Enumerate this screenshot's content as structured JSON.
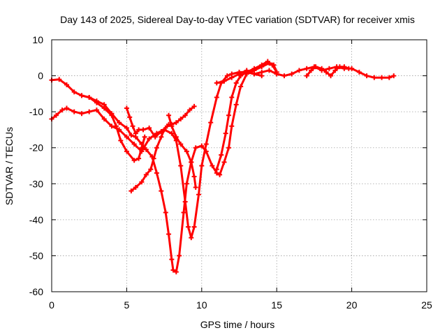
{
  "chart_data": {
    "type": "scatter",
    "title": "Day 143 of 2025, Sidereal Day-to-day VTEC variation (SDTVAR) for receiver xmis",
    "xlabel": "GPS time / hours",
    "ylabel": "SDTVAR / TECUs",
    "xlim": [
      0,
      25
    ],
    "ylim": [
      -60,
      10
    ],
    "xticks": [
      0,
      5,
      10,
      15,
      20,
      25
    ],
    "yticks": [
      10,
      0,
      -10,
      -20,
      -30,
      -40,
      -50,
      -60
    ],
    "xtick_labels": [
      "0",
      "5",
      "10",
      "15",
      "20",
      "25"
    ],
    "ytick_labels": [
      "10",
      "0",
      "-10",
      "-20",
      "-30",
      "-40",
      "-50",
      "-60"
    ],
    "grid": true,
    "marker": "+",
    "color": "#ff0000",
    "series": [
      {
        "name": "satellite track 1",
        "points": [
          [
            0.0,
            -1.2
          ],
          [
            0.5,
            -1.0
          ],
          [
            1.0,
            -2.5
          ],
          [
            1.5,
            -4.5
          ],
          [
            2.0,
            -5.5
          ],
          [
            2.5,
            -6.0
          ],
          [
            3.0,
            -7.0
          ],
          [
            3.5,
            -8.0
          ],
          [
            4.0,
            -10.5
          ],
          [
            4.5,
            -13.0
          ],
          [
            5.0,
            -14.5
          ],
          [
            5.3,
            -16.5
          ],
          [
            5.6,
            -17.0
          ],
          [
            6.0,
            -19.0
          ],
          [
            6.3,
            -20.5
          ],
          [
            6.7,
            -22.5
          ],
          [
            7.0,
            -27.0
          ],
          [
            7.3,
            -32.0
          ],
          [
            7.6,
            -38.0
          ],
          [
            7.8,
            -44.0
          ],
          [
            8.0,
            -51.0
          ],
          [
            8.1,
            -54.0
          ],
          [
            8.3,
            -54.5
          ],
          [
            8.5,
            -50.0
          ],
          [
            8.8,
            -38.0
          ],
          [
            9.0,
            -30.0
          ],
          [
            9.3,
            -24.0
          ],
          [
            9.6,
            -20.0
          ],
          [
            10.0,
            -19.5
          ],
          [
            10.3,
            -21.0
          ],
          [
            10.7,
            -25.0
          ],
          [
            11.0,
            -27.0
          ],
          [
            11.2,
            -27.5
          ],
          [
            11.5,
            -24.0
          ],
          [
            11.8,
            -20.0
          ],
          [
            12.0,
            -14.0
          ],
          [
            12.3,
            -8.0
          ],
          [
            12.6,
            -3.0
          ],
          [
            13.0,
            0.5
          ],
          [
            13.5,
            1.5
          ],
          [
            14.0,
            2.5
          ],
          [
            14.5,
            3.5
          ],
          [
            14.8,
            3.0
          ],
          [
            15.0,
            1.0
          ]
        ]
      },
      {
        "name": "satellite track 2",
        "points": [
          [
            0.0,
            -12.0
          ],
          [
            0.3,
            -11.0
          ],
          [
            0.7,
            -9.5
          ],
          [
            1.0,
            -9.0
          ],
          [
            1.5,
            -10.0
          ],
          [
            2.0,
            -10.5
          ],
          [
            2.5,
            -10.0
          ],
          [
            3.0,
            -9.5
          ],
          [
            3.5,
            -12.0
          ],
          [
            4.0,
            -14.0
          ],
          [
            4.5,
            -15.0
          ],
          [
            5.0,
            -17.0
          ],
          [
            5.5,
            -19.0
          ],
          [
            6.0,
            -21.0
          ],
          [
            6.5,
            -17.5
          ],
          [
            7.0,
            -16.0
          ],
          [
            7.5,
            -15.0
          ],
          [
            8.0,
            -16.0
          ],
          [
            8.3,
            -18.0
          ],
          [
            8.6,
            -25.0
          ],
          [
            8.9,
            -35.0
          ],
          [
            9.1,
            -42.0
          ],
          [
            9.3,
            -45.0
          ],
          [
            9.5,
            -42.0
          ],
          [
            9.8,
            -33.0
          ],
          [
            10.0,
            -25.0
          ],
          [
            10.3,
            -19.0
          ],
          [
            10.6,
            -13.0
          ],
          [
            11.0,
            -6.0
          ],
          [
            11.3,
            -2.0
          ],
          [
            11.7,
            0.0
          ],
          [
            12.0,
            0.5
          ],
          [
            12.5,
            1.0
          ],
          [
            13.0,
            1.0
          ],
          [
            13.5,
            0.5
          ],
          [
            14.0,
            0.0
          ]
        ]
      },
      {
        "name": "satellite track 3",
        "points": [
          [
            5.0,
            -9.0
          ],
          [
            5.2,
            -11.5
          ],
          [
            5.4,
            -14.0
          ],
          [
            5.6,
            -16.0
          ],
          [
            5.8,
            -15.0
          ],
          [
            6.1,
            -15.0
          ],
          [
            6.5,
            -14.5
          ],
          [
            6.9,
            -17.0
          ],
          [
            7.3,
            -15.5
          ],
          [
            7.7,
            -14.0
          ],
          [
            8.0,
            -13.5
          ],
          [
            8.3,
            -13.0
          ],
          [
            8.6,
            -12.0
          ],
          [
            8.9,
            -11.0
          ],
          [
            9.2,
            -9.5
          ],
          [
            9.5,
            -8.5
          ]
        ]
      },
      {
        "name": "satellite track 4",
        "points": [
          [
            2.0,
            -5.5
          ],
          [
            2.5,
            -6.0
          ],
          [
            3.0,
            -7.5
          ],
          [
            3.5,
            -9.0
          ],
          [
            4.0,
            -11.0
          ],
          [
            4.3,
            -14.0
          ],
          [
            4.6,
            -18.0
          ],
          [
            5.0,
            -21.0
          ],
          [
            5.5,
            -23.5
          ],
          [
            5.8,
            -23.0
          ],
          [
            6.0,
            -20.0
          ],
          [
            6.2,
            -17.0
          ]
        ]
      },
      {
        "name": "satellite track 5",
        "points": [
          [
            7.8,
            -11.0
          ],
          [
            8.0,
            -14.0
          ],
          [
            8.3,
            -17.0
          ],
          [
            8.6,
            -19.0
          ],
          [
            9.0,
            -21.0
          ],
          [
            9.3,
            -24.0
          ],
          [
            9.5,
            -28.0
          ],
          [
            9.6,
            -31.0
          ]
        ]
      },
      {
        "name": "satellite track 6",
        "points": [
          [
            5.3,
            -32.0
          ],
          [
            5.6,
            -31.0
          ],
          [
            6.0,
            -29.5
          ],
          [
            6.3,
            -27.5
          ],
          [
            6.6,
            -26.0
          ],
          [
            6.8,
            -23.0
          ],
          [
            7.0,
            -20.0
          ],
          [
            7.3,
            -17.0
          ],
          [
            7.5,
            -15.0
          ],
          [
            7.8,
            -13.5
          ]
        ]
      },
      {
        "name": "satellite track 7",
        "points": [
          [
            11.0,
            -26.0
          ],
          [
            11.3,
            -22.0
          ],
          [
            11.6,
            -16.0
          ],
          [
            11.8,
            -11.0
          ],
          [
            12.0,
            -6.0
          ],
          [
            12.3,
            -2.0
          ],
          [
            12.6,
            0.0
          ],
          [
            13.0,
            1.0
          ],
          [
            13.5,
            2.0
          ],
          [
            14.0,
            3.0
          ],
          [
            14.4,
            4.0
          ],
          [
            14.7,
            3.0
          ],
          [
            15.0,
            1.0
          ]
        ]
      },
      {
        "name": "satellite track 8",
        "points": [
          [
            11.0,
            -2.0
          ],
          [
            11.5,
            -1.5
          ],
          [
            12.0,
            -0.5
          ],
          [
            12.5,
            0.5
          ],
          [
            13.0,
            1.5
          ],
          [
            13.5,
            0.5
          ],
          [
            14.0,
            1.0
          ],
          [
            14.5,
            1.5
          ],
          [
            15.0,
            0.5
          ],
          [
            15.5,
            0.0
          ],
          [
            16.0,
            0.5
          ],
          [
            16.5,
            1.5
          ],
          [
            17.0,
            2.0
          ],
          [
            17.5,
            2.5
          ],
          [
            18.0,
            1.5
          ],
          [
            18.5,
            2.0
          ],
          [
            19.0,
            2.5
          ],
          [
            19.5,
            2.0
          ],
          [
            20.0,
            2.0
          ],
          [
            20.5,
            1.0
          ],
          [
            21.0,
            0.0
          ],
          [
            21.5,
            -0.5
          ],
          [
            22.0,
            -0.5
          ],
          [
            22.5,
            -0.5
          ],
          [
            22.8,
            0.0
          ]
        ]
      },
      {
        "name": "satellite track 9",
        "points": [
          [
            17.0,
            0.0
          ],
          [
            17.3,
            1.5
          ],
          [
            17.6,
            2.5
          ],
          [
            18.0,
            2.0
          ],
          [
            18.3,
            1.0
          ],
          [
            18.6,
            0.0
          ],
          [
            18.9,
            1.5
          ],
          [
            19.2,
            2.5
          ],
          [
            19.5,
            2.5
          ],
          [
            19.8,
            2.0
          ]
        ]
      }
    ]
  }
}
